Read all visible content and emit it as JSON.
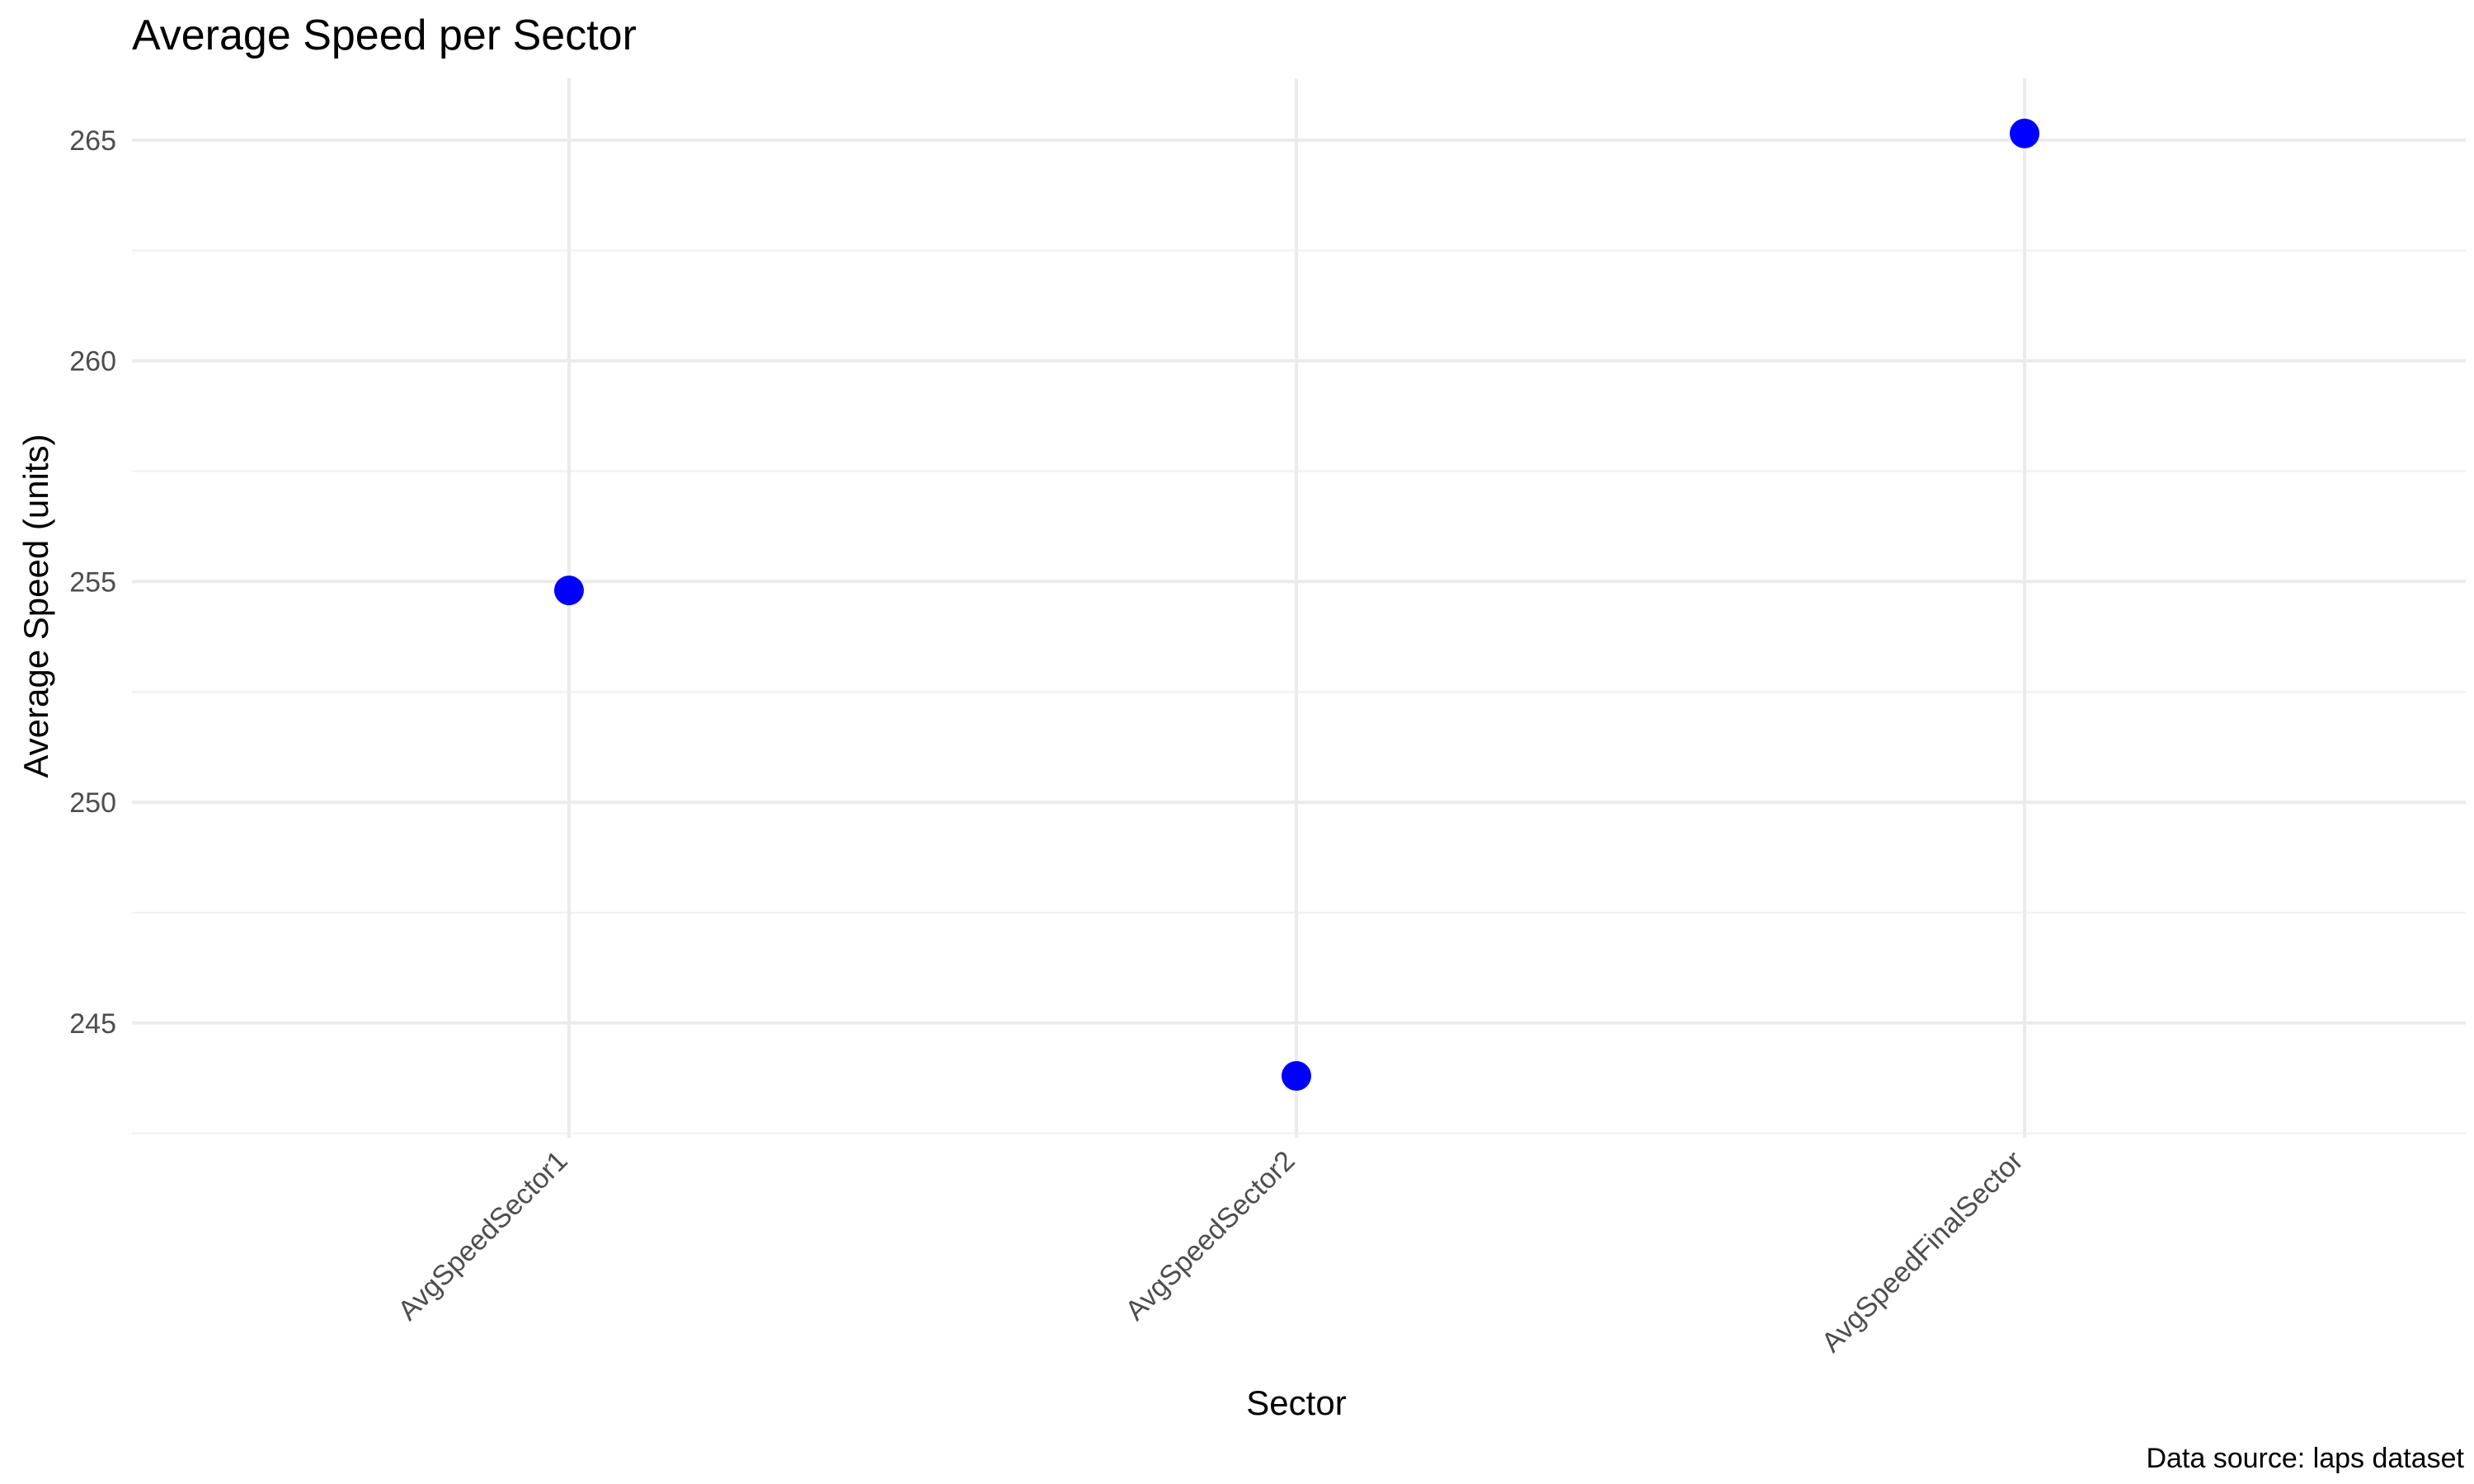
{
  "chart_data": {
    "type": "scatter",
    "title": "Average Speed per Sector",
    "xlabel": "Sector",
    "ylabel": "Average Speed (units)",
    "caption": "Data source: laps dataset",
    "categories": [
      "AvgSpeedSector1",
      "AvgSpeedSector2",
      "AvgSpeedFinalSector"
    ],
    "values": [
      254.8,
      243.8,
      265.15
    ],
    "yticks": [
      245,
      250,
      255,
      260,
      265
    ],
    "ylim": [
      242.4,
      266.4
    ],
    "grid": true,
    "point_color": "#0000ff",
    "legend": "none"
  }
}
